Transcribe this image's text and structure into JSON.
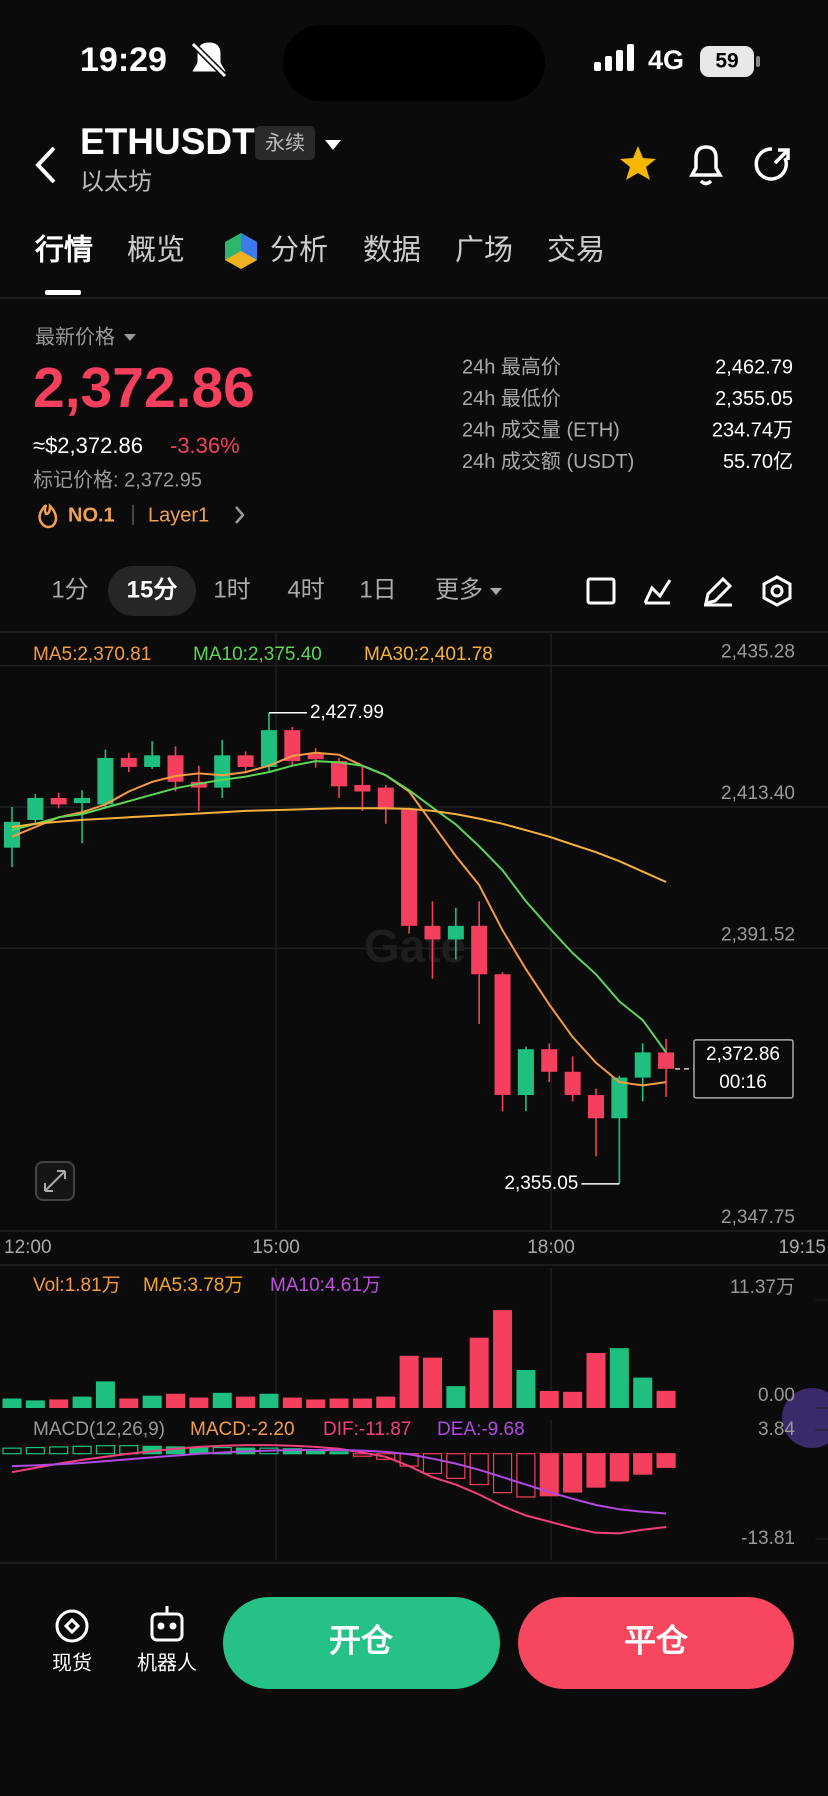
{
  "status_bar": {
    "time": "19:29",
    "network": "4G",
    "battery": "59"
  },
  "header": {
    "symbol": "ETHUSDT",
    "badge": "永续",
    "name": "以太坊"
  },
  "tabs": [
    "行情",
    "概览",
    "分析",
    "数据",
    "广场",
    "交易"
  ],
  "price": {
    "label": "最新价格",
    "last": "2,372.86",
    "usd": "≈$2,372.86",
    "change": "-3.36%",
    "mark": "标记价格: 2,372.95",
    "rank": "NO.1",
    "tag": "Layer1"
  },
  "stats": [
    {
      "label": "24h 最高价",
      "value": "2,462.79"
    },
    {
      "label": "24h 最低价",
      "value": "2,355.05"
    },
    {
      "label": "24h 成交量 (ETH)",
      "value": "234.74万"
    },
    {
      "label": "24h 成交额 (USDT)",
      "value": "55.70亿"
    }
  ],
  "intervals": [
    "1分",
    "15分",
    "1时",
    "4时",
    "1日",
    "更多"
  ],
  "chart": {
    "colors": {
      "up": "#1fc07f",
      "down": "#f43f5e"
    },
    "ma_legend": [
      {
        "text": "MA5:2,370.81",
        "color": "#f59a45",
        "values": [
          2408.8,
          2410.3,
          2411.8,
          2412.6,
          2413.8,
          2415.8,
          2417.3,
          2418.2,
          2418.6,
          2418.3,
          2418.8,
          2419.8,
          2421.3,
          2421.8,
          2421.5,
          2419.8,
          2418.3,
          2415.8,
          2410.8,
          2405.8,
          2401.3,
          2394.3,
          2388.3,
          2382.8,
          2377.8,
          2373.8,
          2370.8,
          2370.3,
          2370.81
        ]
      },
      {
        "text": "MA10:2,375.40",
        "color": "#5fd35a",
        "values": [
          2409.8,
          2410.8,
          2411.8,
          2412.3,
          2413.3,
          2414.3,
          2415.3,
          2416.3,
          2417,
          2417.6,
          2418.1,
          2418.8,
          2419.8,
          2420.5,
          2420.3,
          2419.8,
          2418.3,
          2416,
          2413.3,
          2410.7,
          2407.3,
          2403.6,
          2398.8,
          2394.7,
          2390.8,
          2387.5,
          2383.3,
          2380.4,
          2375.4
        ]
      },
      {
        "text": "MA30:2,401.78",
        "color": "#f5b13d",
        "values": [
          2410.3,
          2410.8,
          2411.1,
          2411.4,
          2411.6,
          2411.8,
          2412,
          2412.2,
          2412.4,
          2412.6,
          2412.8,
          2412.9,
          2413,
          2413.1,
          2413.2,
          2413.2,
          2413.2,
          2413.1,
          2412.8,
          2412.3,
          2411.6,
          2410.8,
          2409.8,
          2408.8,
          2407.6,
          2406.4,
          2405,
          2403.4,
          2401.78
        ]
      }
    ],
    "ylim": [
      2347.75,
      2440.34
    ],
    "yticks": [
      {
        "value": 2435.28,
        "label": "2,435.28"
      },
      {
        "value": 2413.4,
        "label": "2,413.40"
      },
      {
        "value": 2391.52,
        "label": "2,391.52"
      },
      {
        "value": 2347.75,
        "label": "2,347.75"
      }
    ],
    "x_labels": [
      "12:00",
      "15:00",
      "18:00",
      "19:15"
    ],
    "candles": [
      {
        "open": 2407.1,
        "high": 2413.4,
        "low": 2404.1,
        "close": 2411.1
      },
      {
        "open": 2411.4,
        "high": 2415.4,
        "low": 2410.6,
        "close": 2414.8
      },
      {
        "open": 2414.8,
        "high": 2415.6,
        "low": 2413.2,
        "close": 2413.8
      },
      {
        "open": 2414.0,
        "high": 2416.0,
        "low": 2407.8,
        "close": 2414.8
      },
      {
        "open": 2413.8,
        "high": 2422.3,
        "low": 2413.3,
        "close": 2421.0
      },
      {
        "open": 2421.0,
        "high": 2421.8,
        "low": 2418.8,
        "close": 2419.6
      },
      {
        "open": 2419.6,
        "high": 2423.6,
        "low": 2419.3,
        "close": 2421.4
      },
      {
        "open": 2421.4,
        "high": 2422.8,
        "low": 2415.8,
        "close": 2417.3
      },
      {
        "open": 2417.3,
        "high": 2419.8,
        "low": 2412.8,
        "close": 2416.4
      },
      {
        "open": 2416.4,
        "high": 2423.8,
        "low": 2414.8,
        "close": 2421.4
      },
      {
        "open": 2421.4,
        "high": 2422.0,
        "low": 2418.6,
        "close": 2419.6
      },
      {
        "open": 2419.6,
        "high": 2427.99,
        "low": 2418.8,
        "close": 2425.3
      },
      {
        "open": 2425.3,
        "high": 2425.8,
        "low": 2419.8,
        "close": 2420.5
      },
      {
        "open": 2421.6,
        "high": 2422.5,
        "low": 2419.5,
        "close": 2420.8
      },
      {
        "open": 2420.5,
        "high": 2421.0,
        "low": 2414.8,
        "close": 2416.6
      },
      {
        "open": 2416.8,
        "high": 2419.8,
        "low": 2412.8,
        "close": 2415.8
      },
      {
        "open": 2416.4,
        "high": 2416.8,
        "low": 2410.8,
        "close": 2413.0
      },
      {
        "open": 2413.0,
        "high": 2413.3,
        "low": 2393.8,
        "close": 2395.0
      },
      {
        "open": 2395.0,
        "high": 2398.8,
        "low": 2386.8,
        "close": 2392.9
      },
      {
        "open": 2392.9,
        "high": 2397.8,
        "low": 2389.8,
        "close": 2395.0
      },
      {
        "open": 2395.0,
        "high": 2398.8,
        "low": 2379.8,
        "close": 2387.5
      },
      {
        "open": 2387.5,
        "high": 2387.8,
        "low": 2366.3,
        "close": 2368.8
      },
      {
        "open": 2368.8,
        "high": 2376.3,
        "low": 2366.3,
        "close": 2375.9
      },
      {
        "open": 2375.9,
        "high": 2376.8,
        "low": 2370.8,
        "close": 2372.4
      },
      {
        "open": 2372.4,
        "high": 2374.8,
        "low": 2367.8,
        "close": 2368.8
      },
      {
        "open": 2368.8,
        "high": 2369.8,
        "low": 2359.3,
        "close": 2365.2
      },
      {
        "open": 2365.2,
        "high": 2371.8,
        "low": 2355.05,
        "close": 2371.5
      },
      {
        "open": 2371.5,
        "high": 2376.8,
        "low": 2367.8,
        "close": 2375.4
      },
      {
        "open": 2375.4,
        "high": 2377.5,
        "low": 2368.5,
        "close": 2372.86
      }
    ],
    "annotations": [
      {
        "value": 2427.99,
        "label": "2,427.99"
      },
      {
        "value": 2355.05,
        "label": "2,355.05"
      }
    ],
    "last": {
      "value": 2372.86,
      "label": "2,372.86",
      "countdown": "00:16"
    },
    "watermark": "Gate"
  },
  "volume": {
    "legend": [
      {
        "text": "Vol:1.81万",
        "color": "#f59a45"
      },
      {
        "text": "MA5:3.78万",
        "color": "#f5a623"
      },
      {
        "text": "MA10:4.61万",
        "color": "#c04ee0"
      }
    ],
    "ylim": [
      0,
      11.37
    ],
    "yticks": [
      {
        "value": 11.37,
        "label": "11.37万"
      },
      {
        "value": 0,
        "label": "0.00"
      }
    ],
    "values": [
      1.0,
      0.8,
      0.9,
      1.2,
      2.8,
      1.0,
      1.3,
      1.5,
      1.1,
      1.6,
      1.2,
      1.5,
      1.1,
      0.9,
      1.0,
      1.0,
      1.2,
      5.5,
      5.3,
      2.3,
      7.4,
      10.3,
      4.0,
      1.8,
      1.7,
      5.8,
      6.3,
      3.2,
      1.81
    ]
  },
  "macd": {
    "legend": [
      {
        "text": "MACD(12,26,9)",
        "color": "#9a9a9a"
      },
      {
        "text": "MACD:-2.20",
        "color": "#f59a45"
      },
      {
        "text": "DIF:-11.87",
        "color": "#f0407a"
      },
      {
        "text": "DEA:-9.68",
        "color": "#b04ae0"
      }
    ],
    "ylim": [
      -13.81,
      3.84
    ],
    "yticks": [
      3.84,
      -13.81
    ],
    "hist": [
      0.9,
      1.0,
      1.1,
      1.2,
      1.3,
      1.3,
      1.2,
      1.1,
      1.0,
      1.0,
      0.9,
      0.9,
      0.8,
      0.6,
      0.3,
      -0.4,
      -0.9,
      -2.0,
      -3.2,
      -4.0,
      -5.0,
      -6.3,
      -7.0,
      -6.8,
      -6.2,
      -5.4,
      -4.4,
      -3.3,
      -2.2
    ],
    "dif": [
      -3,
      -2.3,
      -1.6,
      -1,
      -0.5,
      0,
      0.4,
      0.8,
      1.1,
      1.3,
      1.4,
      1.4,
      1.3,
      1.1,
      0.8,
      0.2,
      -0.5,
      -2,
      -3.8,
      -5,
      -6.6,
      -8.5,
      -10,
      -11,
      -12,
      -12.8,
      -12.9,
      -12.3,
      -11.87
    ],
    "dea": [
      -2,
      -1.9,
      -1.7,
      -1.5,
      -1.2,
      -0.9,
      -0.6,
      -0.3,
      0,
      0.2,
      0.4,
      0.5,
      0.6,
      0.6,
      0.6,
      0.5,
      0.3,
      -0.1,
      -0.8,
      -1.6,
      -2.6,
      -3.8,
      -5,
      -6.2,
      -7.3,
      -8.3,
      -9,
      -9.4,
      -9.68
    ]
  },
  "bottom": {
    "spot": "现货",
    "bot": "机器人",
    "open": "开仓",
    "close": "平仓"
  }
}
